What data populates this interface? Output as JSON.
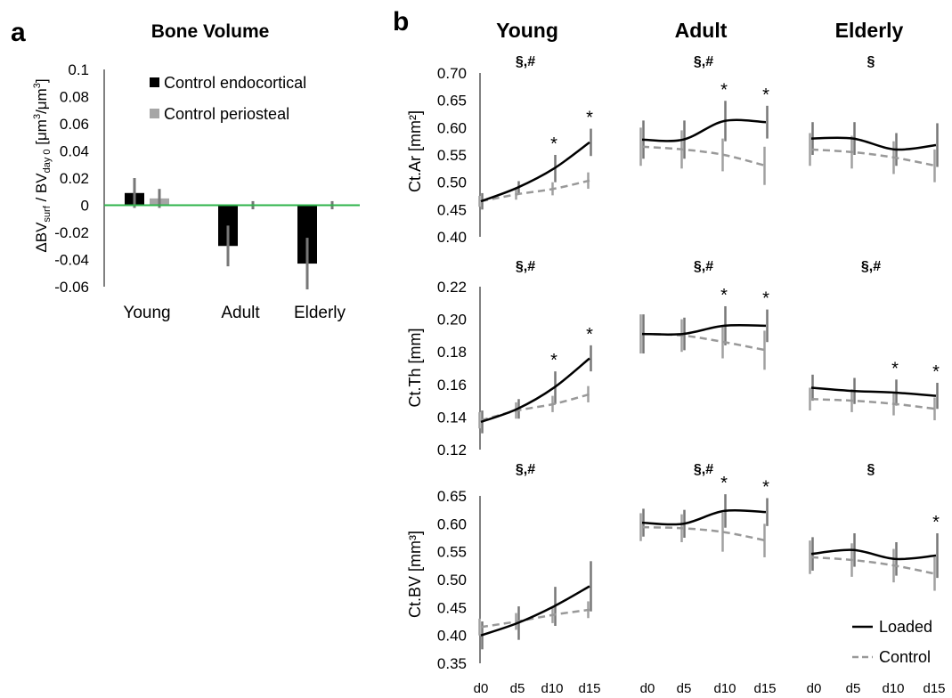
{
  "panel_a": {
    "letter": "a",
    "title": "Bone Volume",
    "ylabel_parts": [
      "ΔBV",
      "surf",
      " / BV",
      "day 0",
      " [μm",
      "3",
      "/μm",
      "3",
      "]"
    ]
  },
  "panel_b": {
    "letter": "b",
    "column_titles": [
      "Young",
      "Adult",
      "Elderly"
    ],
    "row_ylabels": [
      "Ct.Ar [mm²]",
      "Ct.Th [mm]",
      "Ct.BV [mm³]"
    ],
    "significance_labels": [
      [
        "§,#",
        "§,#",
        "§"
      ],
      [
        "§,#",
        "§,#",
        "§,#"
      ],
      [
        "§,#",
        "§,#",
        "§"
      ]
    ],
    "star_symbol": "*",
    "day_labels": [
      "d0",
      "d5",
      "d10",
      "d15"
    ],
    "legend": [
      {
        "label": "Loaded",
        "style": "solid"
      },
      {
        "label": "Control",
        "style": "dashed"
      }
    ]
  },
  "colors": {
    "loaded": "#000000",
    "control": "#999999",
    "endocortical": "#000000",
    "periosteal": "#a6a6a6",
    "zero_line": "#2db34a",
    "errbar": "#777777"
  },
  "chart_data": [
    {
      "type": "bar",
      "title": "Bone Volume",
      "categories": [
        "Young",
        "Adult",
        "Elderly"
      ],
      "series": [
        {
          "name": "Control endocortical",
          "values": [
            0.009,
            -0.03,
            -0.043
          ],
          "errors": [
            0.011,
            0.015,
            0.019
          ]
        },
        {
          "name": "Control periosteal",
          "values": [
            0.005,
            0.0,
            0.0
          ],
          "errors": [
            0.007,
            0.003,
            0.003
          ]
        }
      ],
      "ylim": [
        -0.06,
        0.1
      ],
      "yticks": [
        0.1,
        0.08,
        0.06,
        0.04,
        0.02,
        0,
        -0.02,
        -0.04,
        -0.06
      ],
      "legend_position": "top-right"
    },
    {
      "type": "line",
      "title": "Ct.Ar",
      "ylabel": "Ct.Ar [mm²]",
      "ylim": [
        0.4,
        0.7
      ],
      "yticks": [
        "0.70",
        "0.65",
        "0.60",
        "0.55",
        "0.50",
        "0.45",
        "0.40"
      ],
      "groups": [
        {
          "name": "Young",
          "x": [
            "d0",
            "d5",
            "d10",
            "d15"
          ],
          "loaded": [
            0.465,
            0.49,
            0.525,
            0.573
          ],
          "control": [
            0.465,
            0.478,
            0.488,
            0.503
          ],
          "loaded_err": [
            0.015,
            0.012,
            0.025,
            0.025
          ],
          "control_err": [
            0.01,
            0.01,
            0.012,
            0.015
          ],
          "stars": [
            false,
            false,
            true,
            true
          ],
          "significance": "§,#"
        },
        {
          "name": "Adult",
          "x": [
            "d0",
            "d5",
            "d10",
            "d15"
          ],
          "loaded": [
            0.578,
            0.578,
            0.612,
            0.61
          ],
          "control": [
            0.565,
            0.56,
            0.55,
            0.53
          ],
          "loaded_err": [
            0.035,
            0.035,
            0.037,
            0.03
          ],
          "control_err": [
            0.035,
            0.035,
            0.03,
            0.035
          ],
          "stars": [
            false,
            false,
            true,
            true
          ],
          "significance": "§,#"
        },
        {
          "name": "Elderly",
          "x": [
            "d0",
            "d5",
            "d10",
            "d15"
          ],
          "loaded": [
            0.58,
            0.58,
            0.56,
            0.568
          ],
          "control": [
            0.56,
            0.555,
            0.545,
            0.53
          ],
          "loaded_err": [
            0.03,
            0.03,
            0.03,
            0.04
          ],
          "control_err": [
            0.03,
            0.03,
            0.03,
            0.03
          ],
          "stars": [
            false,
            false,
            false,
            false
          ],
          "significance": "§"
        }
      ]
    },
    {
      "type": "line",
      "title": "Ct.Th",
      "ylabel": "Ct.Th [mm]",
      "ylim": [
        0.12,
        0.22
      ],
      "yticks": [
        "0.22",
        "0.20",
        "0.18",
        "0.16",
        "0.14",
        "0.12"
      ],
      "groups": [
        {
          "name": "Young",
          "x": [
            "d0",
            "d5",
            "d10",
            "d15"
          ],
          "loaded": [
            0.137,
            0.145,
            0.158,
            0.176
          ],
          "control": [
            0.138,
            0.144,
            0.148,
            0.154
          ],
          "loaded_err": [
            0.007,
            0.006,
            0.01,
            0.008
          ],
          "control_err": [
            0.005,
            0.005,
            0.005,
            0.005
          ],
          "stars": [
            false,
            false,
            true,
            true
          ],
          "significance": "§,#"
        },
        {
          "name": "Adult",
          "x": [
            "d0",
            "d5",
            "d10",
            "d15"
          ],
          "loaded": [
            0.191,
            0.191,
            0.196,
            0.196
          ],
          "control": [
            0.191,
            0.19,
            0.186,
            0.181
          ],
          "loaded_err": [
            0.012,
            0.01,
            0.012,
            0.01
          ],
          "control_err": [
            0.012,
            0.01,
            0.01,
            0.012
          ],
          "stars": [
            false,
            false,
            true,
            true
          ],
          "significance": "§,#"
        },
        {
          "name": "Elderly",
          "x": [
            "d0",
            "d5",
            "d10",
            "d15"
          ],
          "loaded": [
            0.158,
            0.156,
            0.155,
            0.153
          ],
          "control": [
            0.151,
            0.15,
            0.148,
            0.145
          ],
          "loaded_err": [
            0.008,
            0.008,
            0.008,
            0.008
          ],
          "control_err": [
            0.007,
            0.007,
            0.007,
            0.007
          ],
          "stars": [
            false,
            false,
            true,
            true
          ],
          "significance": "§,#"
        }
      ]
    },
    {
      "type": "line",
      "title": "Ct.BV",
      "ylabel": "Ct.BV [mm³]",
      "ylim": [
        0.35,
        0.65
      ],
      "yticks": [
        "0.65",
        "0.60",
        "0.55",
        "0.50",
        "0.45",
        "0.40",
        "0.35"
      ],
      "groups": [
        {
          "name": "Young",
          "x": [
            "d0",
            "d5",
            "d10",
            "d15"
          ],
          "loaded": [
            0.4,
            0.422,
            0.452,
            0.488
          ],
          "control": [
            0.415,
            0.425,
            0.437,
            0.446
          ],
          "loaded_err": [
            0.025,
            0.03,
            0.035,
            0.045
          ],
          "control_err": [
            0.015,
            0.015,
            0.015,
            0.015
          ],
          "stars": [
            false,
            false,
            false,
            false
          ],
          "significance": "§,#"
        },
        {
          "name": "Adult",
          "x": [
            "d0",
            "d5",
            "d10",
            "d15"
          ],
          "loaded": [
            0.602,
            0.6,
            0.623,
            0.621
          ],
          "control": [
            0.594,
            0.592,
            0.585,
            0.57
          ],
          "loaded_err": [
            0.025,
            0.025,
            0.03,
            0.025
          ],
          "control_err": [
            0.025,
            0.025,
            0.035,
            0.03
          ],
          "stars": [
            false,
            false,
            true,
            true
          ],
          "significance": "§,#"
        },
        {
          "name": "Elderly",
          "x": [
            "d0",
            "d5",
            "d10",
            "d15"
          ],
          "loaded": [
            0.546,
            0.553,
            0.537,
            0.543
          ],
          "control": [
            0.54,
            0.535,
            0.525,
            0.51
          ],
          "loaded_err": [
            0.03,
            0.03,
            0.03,
            0.04
          ],
          "control_err": [
            0.03,
            0.03,
            0.03,
            0.03
          ],
          "stars": [
            false,
            false,
            false,
            true
          ],
          "significance": "§"
        }
      ]
    }
  ]
}
